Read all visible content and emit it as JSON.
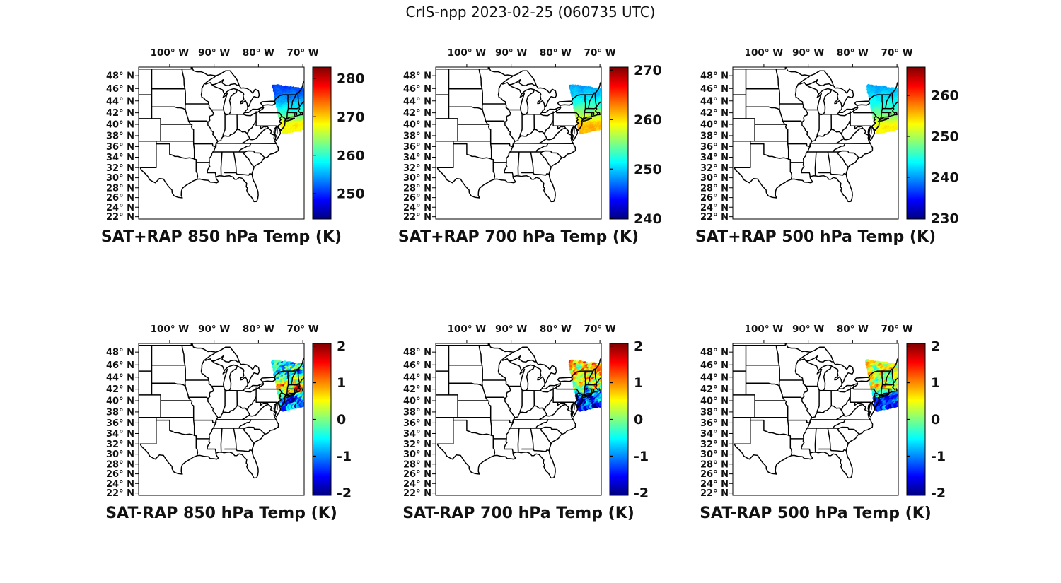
{
  "figure": {
    "title": "CrIS-npp 2023-02-25 (060735 UTC)"
  },
  "colors": {
    "background": "#ffffff",
    "text": "#111111",
    "map_line": "#000000",
    "frame": "#000000"
  },
  "chart_data": {
    "type": "scatter",
    "projection": "mercator",
    "description": "Six map panels of CrIS-npp satellite sounding temperatures over the eastern US; top row SAT+RAP retrieved temperature (K), bottom row SAT-RAP difference (K); data swath covers the US Northeast (~38.5-46.5N, west of ~76.5W to map edge ~70W).",
    "map_extent": {
      "lon_min": -107.0,
      "lon_max": -69.7,
      "lat_min": 21.5,
      "lat_max": 49.3
    },
    "lon_ticks": [
      {
        "deg": -100,
        "label": "100° W"
      },
      {
        "deg": -90,
        "label": "90° W"
      },
      {
        "deg": -80,
        "label": "80° W"
      },
      {
        "deg": -70,
        "label": "70° W"
      }
    ],
    "lat_ticks": [
      {
        "deg": 48,
        "label": "48° N"
      },
      {
        "deg": 46,
        "label": "46° N"
      },
      {
        "deg": 44,
        "label": "44° N"
      },
      {
        "deg": 42,
        "label": "42° N"
      },
      {
        "deg": 40,
        "label": "40° N"
      },
      {
        "deg": 38,
        "label": "38° N"
      },
      {
        "deg": 36,
        "label": "36° N"
      },
      {
        "deg": 34,
        "label": "34° N"
      },
      {
        "deg": 32,
        "label": "32° N"
      },
      {
        "deg": 30,
        "label": "30° N"
      },
      {
        "deg": 28,
        "label": "28° N"
      },
      {
        "deg": 26,
        "label": "26° N"
      },
      {
        "deg": 24,
        "label": "24° N"
      },
      {
        "deg": 22,
        "label": "22° N"
      }
    ],
    "colormap": "jet",
    "panels": [
      {
        "id": "sat-plus-rap-850",
        "title": "SAT+RAP 850 hPa Temp (K)",
        "row": 0,
        "col": 0,
        "colorbar": {
          "vmin": 243.4,
          "vmax": 282.9,
          "ticks": [
            {
              "v": 280,
              "label": "280"
            },
            {
              "v": 270,
              "label": "270"
            },
            {
              "v": 260,
              "label": "260"
            },
            {
              "v": 250,
              "label": "250"
            }
          ]
        },
        "swath": {
          "corners": [
            [
              -76.6,
              46.45
            ],
            [
              -69.2,
              45.75
            ],
            [
              -69.2,
              39.4
            ],
            [
              -74.4,
              38.55
            ]
          ],
          "lat_value_bands": [
            [
              46.4,
              250.5
            ],
            [
              45.0,
              252.5
            ],
            [
              44.0,
              254.5
            ],
            [
              43.0,
              257.5
            ],
            [
              42.0,
              260.0
            ],
            [
              41.0,
              264.0
            ],
            [
              40.2,
              268.0
            ],
            [
              39.4,
              268.5
            ],
            [
              38.6,
              267.0
            ]
          ],
          "noise_k": 0.9,
          "wave": 0.8,
          "spots": [],
          "dot_radius": 2.2,
          "grid": [
            28,
            42
          ],
          "seed": 7
        }
      },
      {
        "id": "sat-plus-rap-700",
        "title": "SAT+RAP 700 hPa Temp (K)",
        "row": 0,
        "col": 1,
        "colorbar": {
          "vmin": 239.9,
          "vmax": 270.6,
          "ticks": [
            {
              "v": 270,
              "label": "270"
            },
            {
              "v": 260,
              "label": "260"
            },
            {
              "v": 250,
              "label": "250"
            },
            {
              "v": 240,
              "label": "240"
            }
          ]
        },
        "swath": {
          "corners": [
            [
              -76.6,
              46.45
            ],
            [
              -69.2,
              45.75
            ],
            [
              -69.2,
              39.4
            ],
            [
              -74.4,
              38.55
            ]
          ],
          "lat_value_bands": [
            [
              46.4,
              248.5
            ],
            [
              45.0,
              250.0
            ],
            [
              44.0,
              251.5
            ],
            [
              43.0,
              253.5
            ],
            [
              42.0,
              255.5
            ],
            [
              41.0,
              258.0
            ],
            [
              40.2,
              260.5
            ],
            [
              39.4,
              261.5
            ],
            [
              38.6,
              260.5
            ]
          ],
          "noise_k": 0.7,
          "wave": 0.6,
          "spots": [],
          "dot_radius": 2.2,
          "grid": [
            28,
            42
          ],
          "seed": 8
        }
      },
      {
        "id": "sat-plus-rap-500",
        "title": "SAT+RAP 500 hPa Temp (K)",
        "row": 0,
        "col": 2,
        "colorbar": {
          "vmin": 229.8,
          "vmax": 266.9,
          "ticks": [
            {
              "v": 260,
              "label": "260"
            },
            {
              "v": 250,
              "label": "250"
            },
            {
              "v": 240,
              "label": "240"
            },
            {
              "v": 230,
              "label": "230"
            }
          ]
        },
        "swath": {
          "corners": [
            [
              -76.6,
              46.45
            ],
            [
              -69.2,
              45.75
            ],
            [
              -69.2,
              39.4
            ],
            [
              -74.4,
              38.55
            ]
          ],
          "lat_value_bands": [
            [
              46.4,
              240.5
            ],
            [
              45.0,
              242.0
            ],
            [
              44.0,
              243.5
            ],
            [
              43.0,
              245.0
            ],
            [
              42.0,
              247.0
            ],
            [
              41.0,
              249.5
            ],
            [
              40.2,
              252.0
            ],
            [
              39.4,
              253.5
            ],
            [
              38.6,
              252.5
            ]
          ],
          "noise_k": 0.7,
          "wave": 0.6,
          "spots": [],
          "dot_radius": 2.2,
          "grid": [
            28,
            42
          ],
          "seed": 9
        }
      },
      {
        "id": "sat-minus-rap-850",
        "title": "SAT-RAP 850 hPa Temp (K)",
        "row": 1,
        "col": 0,
        "colorbar": {
          "vmin": -2.07,
          "vmax": 2.07,
          "ticks": [
            {
              "v": 2,
              "label": "2"
            },
            {
              "v": 1,
              "label": "1"
            },
            {
              "v": 0,
              "label": "0"
            },
            {
              "v": -1,
              "label": "-1"
            },
            {
              "v": -2,
              "label": "-2"
            }
          ]
        },
        "swath": {
          "corners": [
            [
              -76.6,
              46.45
            ],
            [
              -69.2,
              45.75
            ],
            [
              -69.2,
              39.4
            ],
            [
              -74.4,
              38.55
            ]
          ],
          "lat_value_bands": [
            [
              46.4,
              -0.6
            ],
            [
              44.5,
              -0.45
            ],
            [
              43.3,
              -0.1
            ],
            [
              42.4,
              0.7
            ],
            [
              41.4,
              0.5
            ],
            [
              40.6,
              -0.5
            ],
            [
              39.6,
              -1.0
            ],
            [
              38.6,
              -1.2
            ]
          ],
          "noise_k": 0.75,
          "wave": 0.5,
          "spots": [
            {
              "lon": -70.9,
              "lat": 42.1,
              "r": 0.9,
              "d": 1.8
            },
            {
              "lon": -70.3,
              "lat": 43.6,
              "r": 0.6,
              "d": 1.2
            },
            {
              "lon": -72.4,
              "lat": 39.9,
              "r": 0.9,
              "d": -1.3
            },
            {
              "lon": -75.2,
              "lat": 44.4,
              "r": 0.8,
              "d": -0.6
            }
          ],
          "dot_radius": 3.5,
          "grid": [
            15,
            21
          ],
          "seed": 21
        }
      },
      {
        "id": "sat-minus-rap-700",
        "title": "SAT-RAP 700 hPa Temp (K)",
        "row": 1,
        "col": 1,
        "colorbar": {
          "vmin": -2.07,
          "vmax": 2.07,
          "ticks": [
            {
              "v": 2,
              "label": "2"
            },
            {
              "v": 1,
              "label": "1"
            },
            {
              "v": 0,
              "label": "0"
            },
            {
              "v": -1,
              "label": "-1"
            },
            {
              "v": -2,
              "label": "-2"
            }
          ]
        },
        "swath": {
          "corners": [
            [
              -76.6,
              46.45
            ],
            [
              -69.2,
              45.75
            ],
            [
              -69.2,
              39.4
            ],
            [
              -74.4,
              38.55
            ]
          ],
          "lat_value_bands": [
            [
              46.4,
              0.8
            ],
            [
              44.8,
              0.6
            ],
            [
              43.5,
              0.4
            ],
            [
              42.5,
              0.1
            ],
            [
              41.5,
              -0.4
            ],
            [
              40.4,
              -1.2
            ],
            [
              38.6,
              -1.7
            ]
          ],
          "noise_k": 0.7,
          "wave": 0.5,
          "spots": [
            {
              "lon": -70.7,
              "lat": 42.4,
              "r": 0.8,
              "d": 1.6
            },
            {
              "lon": -72.9,
              "lat": 41.7,
              "r": 0.6,
              "d": -1.3
            },
            {
              "lon": -70.6,
              "lat": 44.8,
              "r": 0.6,
              "d": 0.9
            }
          ],
          "dot_radius": 3.5,
          "grid": [
            15,
            21
          ],
          "seed": 22
        }
      },
      {
        "id": "sat-minus-rap-500",
        "title": "SAT-RAP 500 hPa Temp (K)",
        "row": 1,
        "col": 2,
        "colorbar": {
          "vmin": -2.07,
          "vmax": 2.07,
          "ticks": [
            {
              "v": 2,
              "label": "2"
            },
            {
              "v": 1,
              "label": "1"
            },
            {
              "v": 0,
              "label": "0"
            },
            {
              "v": -1,
              "label": "-1"
            },
            {
              "v": -2,
              "label": "-2"
            }
          ]
        },
        "swath": {
          "corners": [
            [
              -76.6,
              46.45
            ],
            [
              -69.2,
              45.75
            ],
            [
              -69.2,
              39.4
            ],
            [
              -74.4,
              38.55
            ]
          ],
          "lat_value_bands": [
            [
              46.4,
              0.45
            ],
            [
              45.0,
              0.35
            ],
            [
              43.5,
              0.1
            ],
            [
              42.3,
              0.55
            ],
            [
              41.3,
              -0.35
            ],
            [
              40.2,
              -1.1
            ],
            [
              38.6,
              -1.6
            ]
          ],
          "noise_k": 0.55,
          "wave": 0.45,
          "spots": [
            {
              "lon": -72.7,
              "lat": 42.2,
              "r": 0.7,
              "d": 1.3
            },
            {
              "lon": -70.7,
              "lat": 40.7,
              "r": 0.9,
              "d": -0.9
            },
            {
              "lon": -74.1,
              "lat": 44.0,
              "r": 0.6,
              "d": 0.7
            }
          ],
          "dot_radius": 3.5,
          "grid": [
            15,
            21
          ],
          "seed": 23
        }
      }
    ]
  }
}
